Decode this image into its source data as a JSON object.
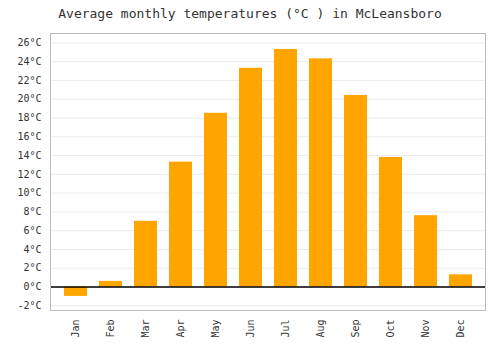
{
  "chart_data": {
    "type": "bar",
    "title": "Average monthly temperatures (°C ) in McLeansboro",
    "categories": [
      "Jan",
      "Feb",
      "Mar",
      "Apr",
      "May",
      "Jun",
      "Jul",
      "Aug",
      "Sep",
      "Oct",
      "Nov",
      "Dec"
    ],
    "values": [
      -1.0,
      0.6,
      7.0,
      13.3,
      18.5,
      23.3,
      25.3,
      24.3,
      20.4,
      13.8,
      7.6,
      1.3
    ],
    "color": "#FFA500",
    "ylim": [
      -2.5,
      27
    ],
    "yticks": [
      {
        "value": -2,
        "label": "-2°C"
      },
      {
        "value": 0,
        "label": "0°C"
      },
      {
        "value": 2,
        "label": "2°C"
      },
      {
        "value": 4,
        "label": "4°C"
      },
      {
        "value": 6,
        "label": "6°C"
      },
      {
        "value": 8,
        "label": "8°C"
      },
      {
        "value": 10,
        "label": "10°C"
      },
      {
        "value": 12,
        "label": "12°C"
      },
      {
        "value": 14,
        "label": "14°C"
      },
      {
        "value": 16,
        "label": "16°C"
      },
      {
        "value": 18,
        "label": "18°C"
      },
      {
        "value": 20,
        "label": "20°C"
      },
      {
        "value": 22,
        "label": "22°C"
      },
      {
        "value": 24,
        "label": "24°C"
      },
      {
        "value": 26,
        "label": "26°C"
      }
    ],
    "grid": true
  }
}
